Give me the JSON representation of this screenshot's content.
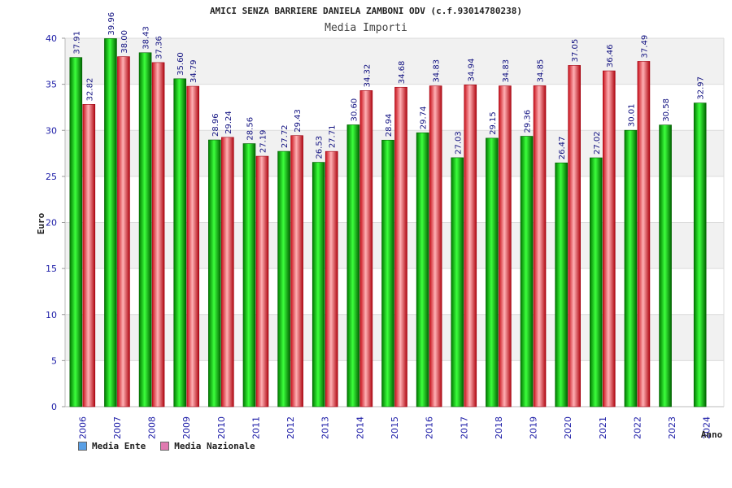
{
  "chart_data": {
    "type": "bar",
    "title": "AMICI SENZA BARRIERE DANIELA ZAMBONI ODV (c.f.93014780238)",
    "subtitle": "Media Importi",
    "xlabel": "Anno",
    "ylabel": "Euro",
    "ylim": [
      0,
      40
    ],
    "yticks": [
      "0",
      "5",
      "10",
      "15",
      "20",
      "25",
      "30",
      "35",
      "40"
    ],
    "categories": [
      "2006",
      "2007",
      "2008",
      "2009",
      "2010",
      "2011",
      "2012",
      "2013",
      "2014",
      "2015",
      "2016",
      "2017",
      "2018",
      "2019",
      "2020",
      "2021",
      "2022",
      "2023",
      "2024"
    ],
    "series": [
      {
        "name": "Media Ente",
        "color": "#00aa00",
        "values": [
          37.91,
          39.96,
          38.43,
          35.6,
          28.96,
          28.56,
          27.72,
          26.53,
          30.6,
          28.94,
          29.74,
          27.03,
          29.15,
          29.36,
          26.47,
          27.02,
          30.01,
          30.58,
          32.97
        ],
        "labels": [
          "37.91",
          "39.96",
          "38.43",
          "35.60",
          "28.96",
          "28.56",
          "27.72",
          "26.53",
          "30.60",
          "28.94",
          "29.74",
          "27.03",
          "29.15",
          "29.36",
          "26.47",
          "27.02",
          "30.01",
          "30.58",
          "32.97"
        ]
      },
      {
        "name": "Media Nazionale",
        "color": "#e8303a",
        "values": [
          32.82,
          38.0,
          37.36,
          34.79,
          29.24,
          27.19,
          29.43,
          27.71,
          34.32,
          34.68,
          34.83,
          34.94,
          34.83,
          34.85,
          37.05,
          36.46,
          37.49,
          null,
          null
        ],
        "labels": [
          "32.82",
          "38.00",
          "37.36",
          "34.79",
          "29.24",
          "27.19",
          "29.43",
          "27.71",
          "34.32",
          "34.68",
          "34.83",
          "34.94",
          "34.83",
          "34.85",
          "37.05",
          "36.46",
          "37.49",
          "",
          ""
        ]
      }
    ],
    "legend": [
      {
        "label": "Media Ente",
        "color": "#5aa0e6"
      },
      {
        "label": "Media Nazionale",
        "color": "#e07ab0"
      }
    ],
    "grid": true,
    "legend_position": "bottom-left"
  }
}
